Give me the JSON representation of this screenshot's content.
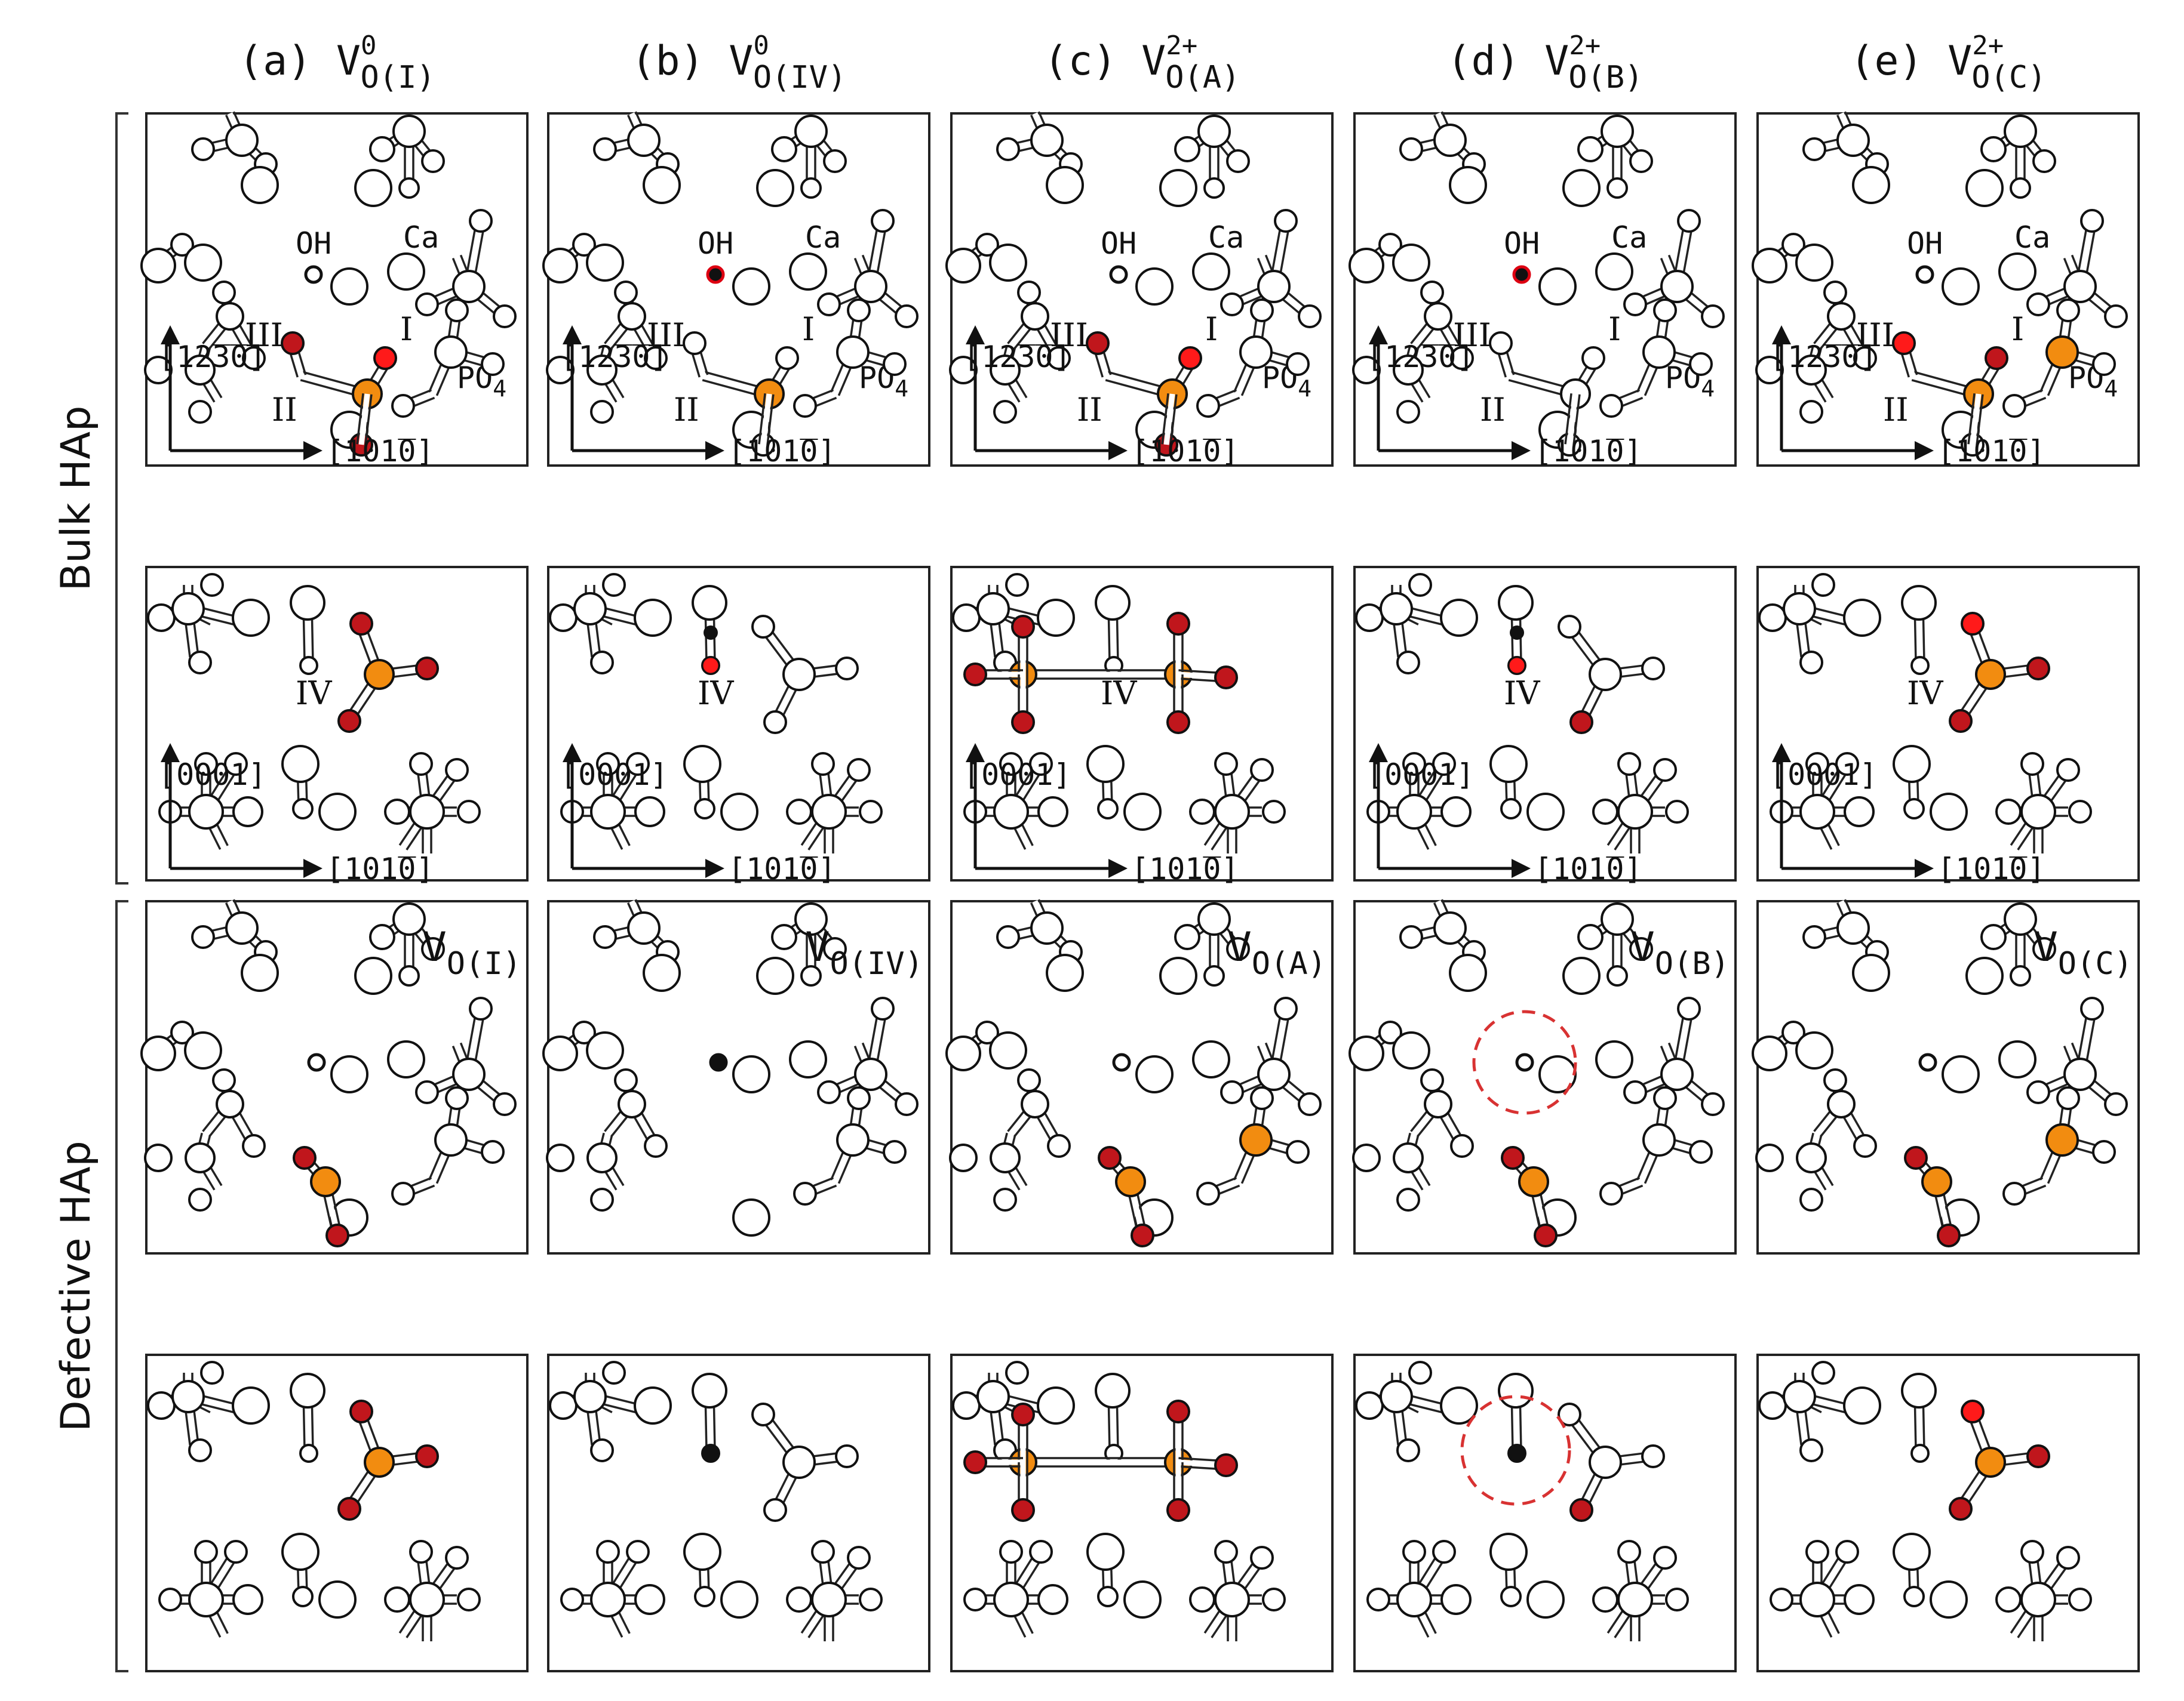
{
  "columns": [
    {
      "prefix": "(a) ",
      "main": "V",
      "sup": "0",
      "sub": "O(I)"
    },
    {
      "prefix": "(b) ",
      "main": "V",
      "sup": "0",
      "sub": "O(IV)"
    },
    {
      "prefix": "(c) ",
      "main": "V",
      "sup": "2+",
      "sub": "O(A)"
    },
    {
      "prefix": "(d) ",
      "main": "V",
      "sup": "2+",
      "sub": "O(B)"
    },
    {
      "prefix": "(e) ",
      "main": "V",
      "sup": "2+",
      "sub": "O(C)"
    }
  ],
  "row_groups": [
    "Bulk HAp",
    "Defective HAp"
  ],
  "labels": {
    "oh": "OH",
    "ca": "Ca",
    "po4_main": "PO",
    "po4_sub": "4",
    "site_I": "I",
    "site_II": "II",
    "site_III": "III",
    "site_IV": "IV",
    "axis_1230": "[12̅3̅0]",
    "axis_1010": "[101̅0]",
    "axis_0001": "[0001]"
  },
  "defect_tags": [
    {
      "main": "V",
      "sub": "O(I)"
    },
    {
      "main": "V",
      "sub": "O(IV)"
    },
    {
      "main": "V",
      "sub": "O(A)"
    },
    {
      "main": "V",
      "sub": "O(B)"
    },
    {
      "main": "V",
      "sub": "O(C)"
    }
  ],
  "colors": {
    "oxygen_red": "#c0161c",
    "oxygen_bright": "#ff1a1a",
    "phosphorus": "#f28c10",
    "hydrogen": "#111111",
    "atom_white": "#ffffff",
    "vacancy_circle": "#d83232"
  }
}
